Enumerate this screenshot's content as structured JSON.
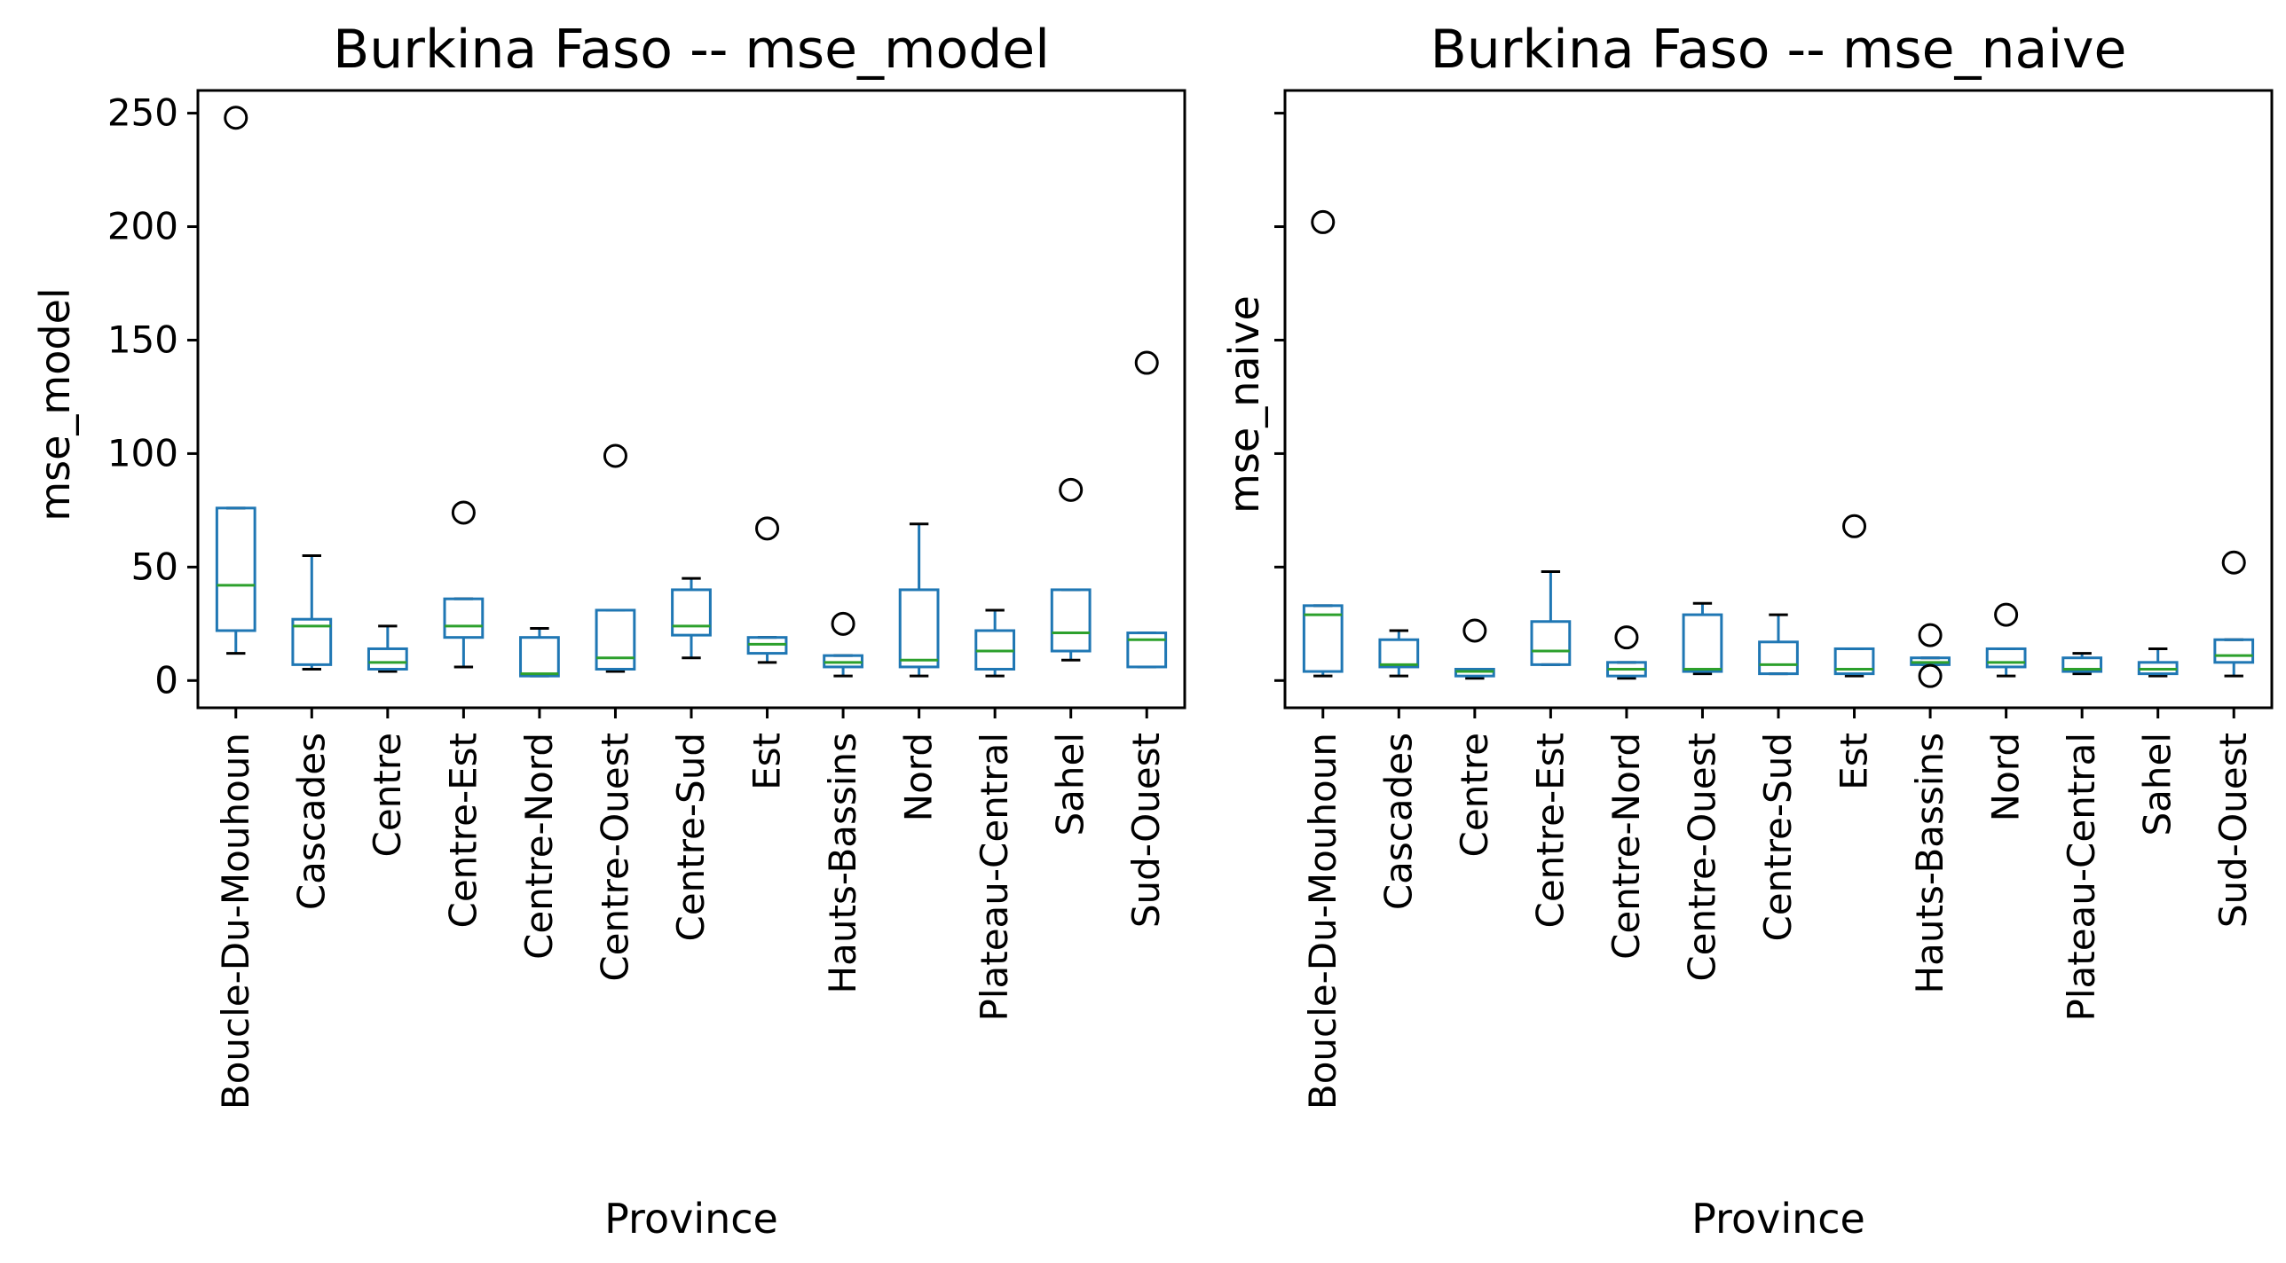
{
  "chart_data": [
    {
      "type": "box",
      "title": "Burkina Faso -- mse_model",
      "xlabel": "Province",
      "ylabel": "mse_model",
      "ylim": [
        -12,
        260
      ],
      "yticks": [
        0,
        50,
        100,
        150,
        200,
        250
      ],
      "show_ytick_labels": true,
      "categories": [
        "Boucle-Du-Mouhoun",
        "Cascades",
        "Centre",
        "Centre-Est",
        "Centre-Nord",
        "Centre-Ouest",
        "Centre-Sud",
        "Est",
        "Hauts-Bassins",
        "Nord",
        "Plateau-Central",
        "Sahel",
        "Sud-Ouest"
      ],
      "boxes": [
        {
          "whislo": 12,
          "q1": 22,
          "med": 42,
          "q3": 76,
          "whishi": 76,
          "fliers": [
            248
          ]
        },
        {
          "whislo": 5,
          "q1": 7,
          "med": 24,
          "q3": 27,
          "whishi": 55,
          "fliers": []
        },
        {
          "whislo": 4,
          "q1": 5,
          "med": 8,
          "q3": 14,
          "whishi": 24,
          "fliers": []
        },
        {
          "whislo": 6,
          "q1": 19,
          "med": 24,
          "q3": 36,
          "whishi": 36,
          "fliers": [
            74
          ]
        },
        {
          "whislo": 2,
          "q1": 2,
          "med": 3,
          "q3": 19,
          "whishi": 23,
          "fliers": []
        },
        {
          "whislo": 4,
          "q1": 5,
          "med": 10,
          "q3": 31,
          "whishi": 31,
          "fliers": [
            99
          ]
        },
        {
          "whislo": 10,
          "q1": 20,
          "med": 24,
          "q3": 40,
          "whishi": 45,
          "fliers": []
        },
        {
          "whislo": 8,
          "q1": 12,
          "med": 16,
          "q3": 19,
          "whishi": 19,
          "fliers": [
            67
          ]
        },
        {
          "whislo": 2,
          "q1": 6,
          "med": 8,
          "q3": 11,
          "whishi": 11,
          "fliers": [
            25
          ]
        },
        {
          "whislo": 2,
          "q1": 6,
          "med": 9,
          "q3": 40,
          "whishi": 69,
          "fliers": []
        },
        {
          "whislo": 2,
          "q1": 5,
          "med": 13,
          "q3": 22,
          "whishi": 31,
          "fliers": []
        },
        {
          "whislo": 9,
          "q1": 13,
          "med": 21,
          "q3": 40,
          "whishi": 40,
          "fliers": [
            84
          ]
        },
        {
          "whislo": 6,
          "q1": 6,
          "med": 18,
          "q3": 21,
          "whishi": 21,
          "fliers": [
            140
          ]
        }
      ]
    },
    {
      "type": "box",
      "title": "Burkina Faso -- mse_naive",
      "xlabel": "Province",
      "ylabel": "mse_naive",
      "ylim": [
        -12,
        260
      ],
      "yticks": [
        0,
        50,
        100,
        150,
        200,
        250
      ],
      "show_ytick_labels": false,
      "categories": [
        "Boucle-Du-Mouhoun",
        "Cascades",
        "Centre",
        "Centre-Est",
        "Centre-Nord",
        "Centre-Ouest",
        "Centre-Sud",
        "Est",
        "Hauts-Bassins",
        "Nord",
        "Plateau-Central",
        "Sahel",
        "Sud-Ouest"
      ],
      "boxes": [
        {
          "whislo": 2,
          "q1": 4,
          "med": 29,
          "q3": 33,
          "whishi": 33,
          "fliers": [
            202
          ]
        },
        {
          "whislo": 2,
          "q1": 6,
          "med": 7,
          "q3": 18,
          "whishi": 22,
          "fliers": []
        },
        {
          "whislo": 1,
          "q1": 2,
          "med": 4,
          "q3": 5,
          "whishi": 5,
          "fliers": [
            22
          ]
        },
        {
          "whislo": 7,
          "q1": 7,
          "med": 13,
          "q3": 26,
          "whishi": 48,
          "fliers": []
        },
        {
          "whislo": 1,
          "q1": 2,
          "med": 5,
          "q3": 8,
          "whishi": 8,
          "fliers": [
            19
          ]
        },
        {
          "whislo": 3,
          "q1": 4,
          "med": 5,
          "q3": 29,
          "whishi": 34,
          "fliers": []
        },
        {
          "whislo": 3,
          "q1": 3,
          "med": 7,
          "q3": 17,
          "whishi": 29,
          "fliers": []
        },
        {
          "whislo": 2,
          "q1": 3,
          "med": 5,
          "q3": 14,
          "whishi": 14,
          "fliers": [
            68
          ]
        },
        {
          "whislo": 7,
          "q1": 7,
          "med": 8,
          "q3": 10,
          "whishi": 10,
          "fliers": [
            20,
            2
          ]
        },
        {
          "whislo": 2,
          "q1": 6,
          "med": 8,
          "q3": 14,
          "whishi": 14,
          "fliers": [
            29
          ]
        },
        {
          "whislo": 3,
          "q1": 4,
          "med": 5,
          "q3": 10,
          "whishi": 12,
          "fliers": []
        },
        {
          "whislo": 2,
          "q1": 3,
          "med": 5,
          "q3": 8,
          "whishi": 14,
          "fliers": []
        },
        {
          "whislo": 2,
          "q1": 8,
          "med": 11,
          "q3": 18,
          "whishi": 18,
          "fliers": [
            52
          ]
        }
      ]
    }
  ],
  "colors": {
    "box": "#1f77b4",
    "median": "#2ca02c",
    "whisker_cap": "#000000",
    "outlier": "#000000",
    "axes": "#000000"
  }
}
